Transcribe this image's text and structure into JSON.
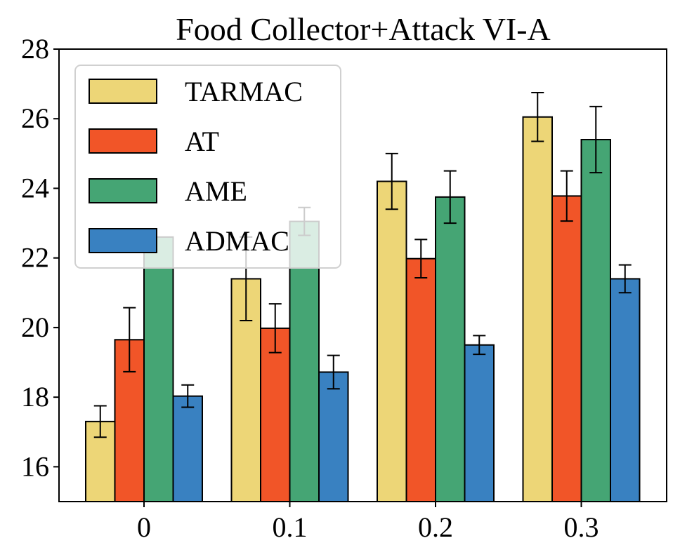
{
  "chart_data": {
    "type": "bar",
    "title": "Food Collector+Attack VI-A",
    "xlabel": "",
    "ylabel": "",
    "categories": [
      "0",
      "0.1",
      "0.2",
      "0.3"
    ],
    "ylim": [
      15,
      28
    ],
    "yticks": [
      16,
      18,
      20,
      22,
      24,
      26,
      28
    ],
    "grid": false,
    "legend_position": "top-left",
    "series": [
      {
        "name": "TARMAC",
        "color": "#edd677",
        "values": [
          17.3,
          21.4,
          24.2,
          26.05
        ],
        "errors": [
          0.45,
          1.2,
          0.8,
          0.7
        ]
      },
      {
        "name": "AT",
        "color": "#f15528",
        "values": [
          19.65,
          19.98,
          21.98,
          23.78
        ],
        "errors": [
          0.92,
          0.7,
          0.55,
          0.72
        ]
      },
      {
        "name": "AME",
        "color": "#45a574",
        "values": [
          22.6,
          23.05,
          23.75,
          25.4
        ],
        "errors": [
          0.0,
          0.4,
          0.75,
          0.95
        ]
      },
      {
        "name": "ADMAC",
        "color": "#3981c1",
        "values": [
          18.03,
          18.72,
          19.5,
          21.4
        ],
        "errors": [
          0.32,
          0.48,
          0.27,
          0.4
        ]
      }
    ]
  }
}
